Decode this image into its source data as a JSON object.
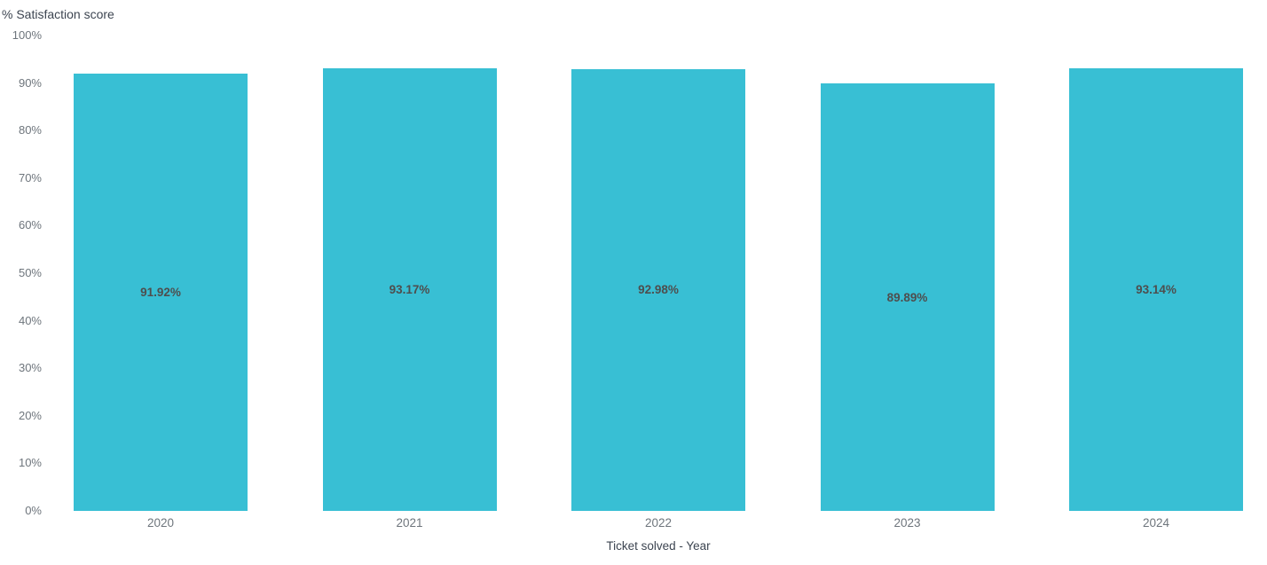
{
  "chart_data": {
    "type": "bar",
    "title": "",
    "categories": [
      "2020",
      "2021",
      "2022",
      "2023",
      "2024"
    ],
    "values": [
      91.92,
      93.17,
      92.98,
      89.89,
      93.14
    ],
    "bar_labels": [
      "91.92%",
      "93.17%",
      "92.98%",
      "89.89%",
      "93.14%"
    ],
    "xlabel": "Ticket solved - Year",
    "ylabel": "% Satisfaction score",
    "ylim": [
      0,
      100
    ],
    "y_tick_step": 10,
    "y_ticks": [
      "100%",
      "90%",
      "80%",
      "70%",
      "60%",
      "50%",
      "40%",
      "30%",
      "20%",
      "10%",
      "0%"
    ],
    "grid": false,
    "legend_position": "none",
    "bar_color": "#38BFD4",
    "label_color": "#4e4e4e",
    "tick_color": "#6e757c",
    "axis_title_color": "#3d4551",
    "background_color": "#ffffff"
  }
}
